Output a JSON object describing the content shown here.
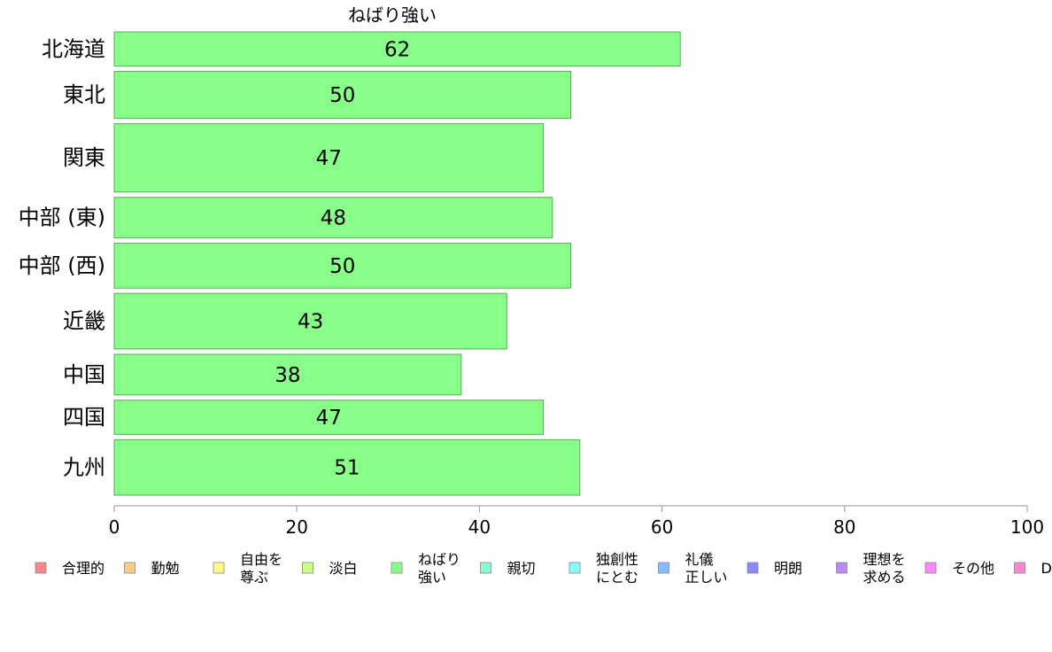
{
  "chart_data": {
    "type": "bar",
    "orientation": "horizontal",
    "title": "ねばり強い",
    "categories": [
      "北海道",
      "東北",
      "関東",
      "中部 (東)",
      "中部 (西)",
      "近畿",
      "中国",
      "四国",
      "九州"
    ],
    "values": [
      62,
      50,
      47,
      48,
      50,
      43,
      38,
      47,
      51
    ],
    "relative_widths": [
      0.8,
      1.1,
      1.6,
      0.95,
      1.05,
      1.3,
      0.95,
      0.8,
      1.3
    ],
    "xlim": [
      0,
      100
    ],
    "xticks": [
      0,
      20,
      40,
      60,
      80,
      100
    ],
    "grid": false,
    "legend_position": "bottom",
    "series_color": "#88ff88",
    "legend": [
      {
        "label": [
          "合理的"
        ],
        "color": "#ff8888"
      },
      {
        "label": [
          "勤勉"
        ],
        "color": "#ffcc88"
      },
      {
        "label": [
          "自由を",
          "尊ぶ"
        ],
        "color": "#ffff88"
      },
      {
        "label": [
          "淡白"
        ],
        "color": "#ccff88"
      },
      {
        "label": [
          "ねばり",
          "強い"
        ],
        "color": "#88ff88"
      },
      {
        "label": [
          "親切"
        ],
        "color": "#88ffcc"
      },
      {
        "label": [
          "独創性",
          "にとむ"
        ],
        "color": "#88ffff"
      },
      {
        "label": [
          "礼儀",
          "正しい"
        ],
        "color": "#88bbff"
      },
      {
        "label": [
          "明朗"
        ],
        "color": "#8888ff"
      },
      {
        "label": [
          "理想を",
          "求める"
        ],
        "color": "#bb88ff"
      },
      {
        "label": [
          "その他"
        ],
        "color": "#ff88ff"
      },
      {
        "label": [
          "D"
        ],
        "color": "#ff88cc"
      }
    ]
  }
}
